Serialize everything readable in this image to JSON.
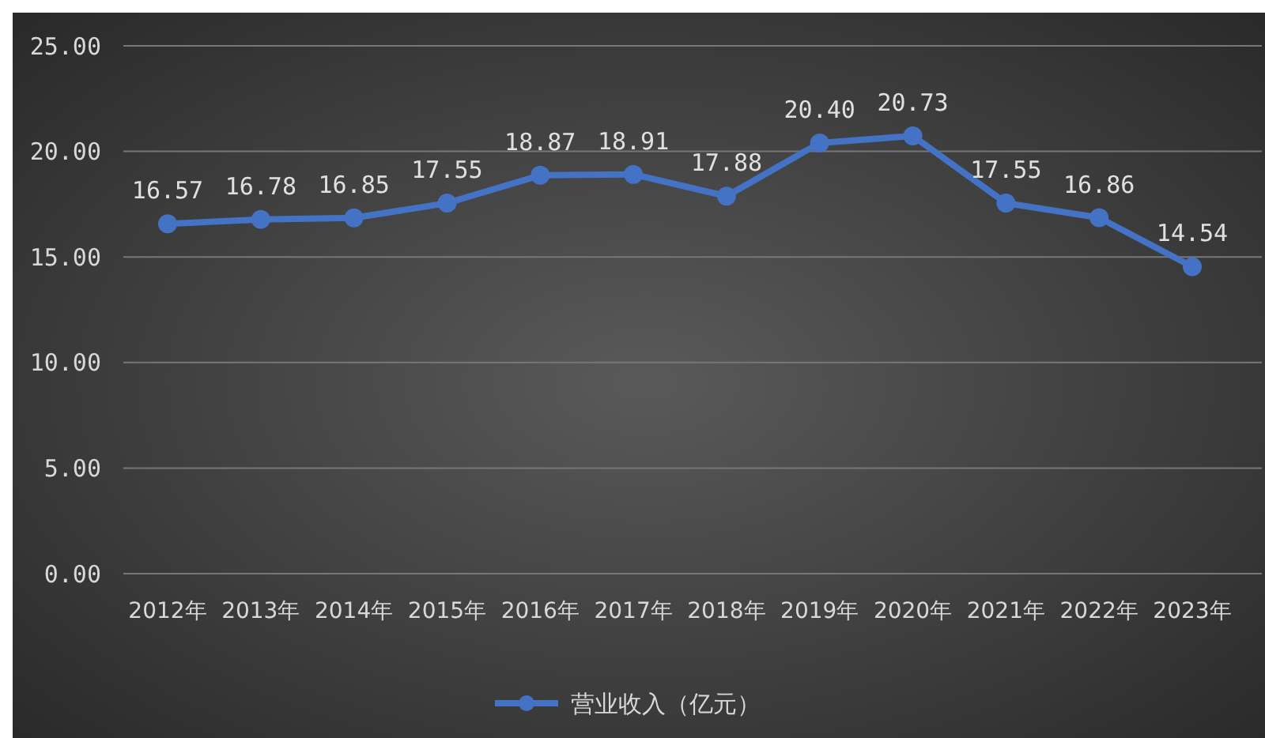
{
  "chart_data": {
    "type": "line",
    "categories": [
      "2012年",
      "2013年",
      "2014年",
      "2015年",
      "2016年",
      "2017年",
      "2018年",
      "2019年",
      "2020年",
      "2021年",
      "2022年",
      "2023年"
    ],
    "series": [
      {
        "name": "营业收入（亿元）",
        "color": "#4472c4",
        "values": [
          16.57,
          16.78,
          16.85,
          17.55,
          18.87,
          18.91,
          17.88,
          20.4,
          20.73,
          17.55,
          16.86,
          14.54
        ],
        "value_labels": [
          "16.57",
          "16.78",
          "16.85",
          "17.55",
          "18.87",
          "18.91",
          "17.88",
          "20.40",
          "20.73",
          "17.55",
          "16.86",
          "14.54"
        ]
      }
    ],
    "ylim": [
      0,
      25
    ],
    "yticks": [
      {
        "value": 0,
        "label": "0.00"
      },
      {
        "value": 5,
        "label": "5.00"
      },
      {
        "value": 10,
        "label": "10.00"
      },
      {
        "value": 15,
        "label": "15.00"
      },
      {
        "value": 20,
        "label": "20.00"
      },
      {
        "value": 25,
        "label": "25.00"
      }
    ],
    "grid": "y",
    "legend": "bottom",
    "marker": "circle",
    "line_style": "solid"
  }
}
